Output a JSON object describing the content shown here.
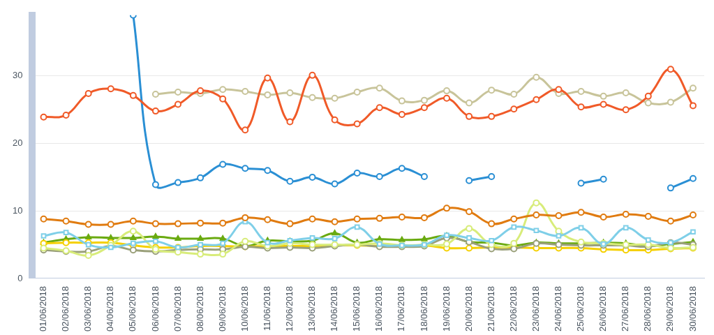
{
  "chart_data": {
    "type": "line",
    "categories": [
      "01/06/2018",
      "02/06/2018",
      "03/06/2018",
      "04/06/2018",
      "05/06/2018",
      "06/06/2018",
      "07/06/2018",
      "08/06/2018",
      "09/06/2018",
      "10/06/2018",
      "11/06/2018",
      "12/06/2018",
      "13/06/2018",
      "14/06/2018",
      "15/06/2018",
      "16/06/2018",
      "17/06/2018",
      "18/06/2018",
      "19/06/2018",
      "20/06/2018",
      "21/06/2018",
      "22/06/2018",
      "23/06/2018",
      "24/06/2018",
      "25/06/2018",
      "26/06/2018",
      "27/06/2018",
      "28/06/2018",
      "29/06/2018",
      "30/06/2018"
    ],
    "ylim": [
      0,
      39
    ],
    "yticks": [
      0,
      10,
      20,
      30
    ],
    "grid": true,
    "series": [
      {
        "color": "#f05a28",
        "marker": "circle",
        "values": [
          23.9,
          24.2,
          27.4,
          28.1,
          27.1,
          24.8,
          25.8,
          27.8,
          26.6,
          22.0,
          29.7,
          23.2,
          30.1,
          23.5,
          22.9,
          25.3,
          24.3,
          25.3,
          26.7,
          24.0,
          24.0,
          25.1,
          26.5,
          28.0,
          25.4,
          25.8,
          25.0,
          27.0,
          31.0,
          25.6
        ]
      },
      {
        "color": "#c8c49a",
        "marker": "circle",
        "values": [
          null,
          null,
          null,
          null,
          null,
          27.3,
          27.6,
          27.4,
          28.0,
          27.7,
          27.2,
          27.5,
          26.8,
          26.7,
          27.6,
          28.2,
          26.3,
          26.4,
          27.8,
          26.0,
          27.9,
          27.3,
          29.8,
          27.4,
          27.7,
          27.0,
          27.5,
          26.0,
          26.1,
          28.2
        ]
      },
      {
        "color": "#2a8fd4",
        "marker": "circle",
        "values": [
          null,
          null,
          null,
          null,
          39,
          13.9,
          14.2,
          14.9,
          16.9,
          16.3,
          16.0,
          14.4,
          15.0,
          14.0,
          15.6,
          15.1,
          16.3,
          15.1,
          null,
          14.5,
          15.1,
          null,
          null,
          null,
          14.1,
          14.7,
          null,
          null,
          13.4,
          14.8
        ]
      },
      {
        "color": "#e07b10",
        "marker": "circle",
        "values": [
          8.8,
          8.5,
          8.0,
          8.0,
          8.5,
          8.1,
          8.1,
          8.2,
          8.2,
          9.0,
          8.7,
          8.1,
          8.8,
          8.4,
          8.8,
          8.9,
          9.1,
          9.0,
          10.4,
          9.9,
          8.1,
          8.8,
          9.4,
          9.3,
          9.8,
          9.1,
          9.5,
          9.2,
          8.5,
          9.4
        ]
      },
      {
        "color": "#7fcfe8",
        "marker": "square",
        "values": [
          6.3,
          6.8,
          5.0,
          4.6,
          5.2,
          5.5,
          4.6,
          5.0,
          5.2,
          8.4,
          5.3,
          5.6,
          6.0,
          5.9,
          7.6,
          5.1,
          4.9,
          5.0,
          6.4,
          6.0,
          5.6,
          7.6,
          7.1,
          6.3,
          7.5,
          5.1,
          7.5,
          5.7,
          5.3,
          6.9
        ]
      },
      {
        "color": "#d8ec7a",
        "marker": "circle",
        "values": [
          4.5,
          4.1,
          3.4,
          4.9,
          7.0,
          4.3,
          3.9,
          3.6,
          3.6,
          5.5,
          4.8,
          5.2,
          5.0,
          5.0,
          5.0,
          5.2,
          4.9,
          5.0,
          5.1,
          7.4,
          5.0,
          5.2,
          11.2,
          7.0,
          5.4,
          5.2,
          5.0,
          5.0,
          4.5,
          4.6
        ]
      },
      {
        "color": "#9aa07a",
        "marker": "circle",
        "values": [
          4.2,
          4.0,
          4.0,
          4.8,
          4.2,
          4.0,
          4.2,
          4.3,
          4.3,
          4.7,
          4.5,
          4.6,
          4.5,
          4.8,
          5.0,
          4.7,
          4.7,
          4.8,
          6.0,
          5.4,
          4.4,
          4.4,
          5.2,
          5.0,
          4.9,
          4.9,
          4.9,
          4.7,
          5.3,
          5.0
        ]
      },
      {
        "color": "#f5d000",
        "marker": "circle",
        "values": [
          5.2,
          5.3,
          5.3,
          5.3,
          4.9,
          4.6,
          4.6,
          4.8,
          4.8,
          4.7,
          4.8,
          4.8,
          4.8,
          4.9,
          4.9,
          4.8,
          4.8,
          4.9,
          4.5,
          4.5,
          4.6,
          4.6,
          4.5,
          4.5,
          4.5,
          4.3,
          4.2,
          4.2,
          4.4,
          4.5
        ]
      },
      {
        "color": "#6aaa10",
        "marker": "triangle",
        "values": [
          5.3,
          5.8,
          6.1,
          6.0,
          6.0,
          6.2,
          5.9,
          5.9,
          5.9,
          4.8,
          5.6,
          5.5,
          5.6,
          6.7,
          5.3,
          5.8,
          5.7,
          5.8,
          6.3,
          5.4,
          5.3,
          4.9,
          5.3,
          5.2,
          5.2,
          5.3,
          5.2,
          4.8,
          5.1,
          5.4
        ]
      }
    ]
  }
}
